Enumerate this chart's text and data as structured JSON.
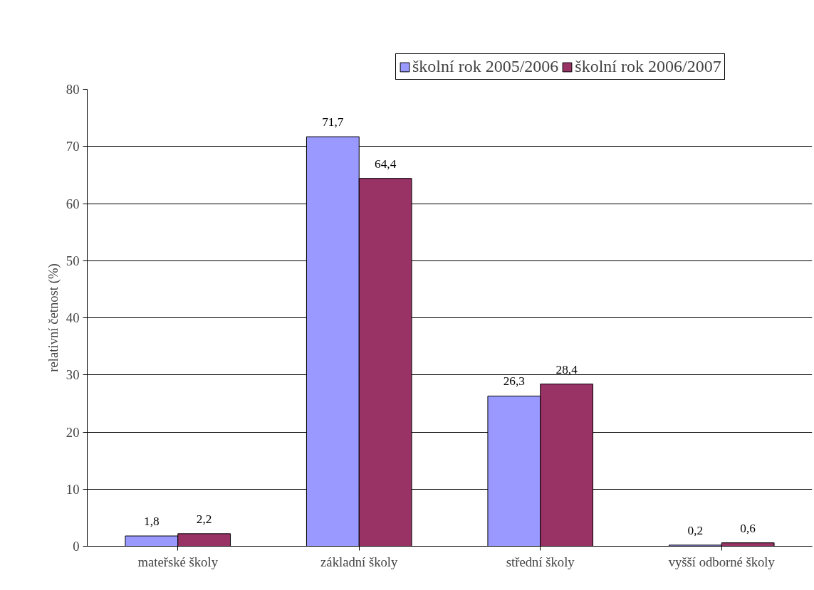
{
  "chart_data": {
    "type": "bar",
    "ylabel": "relativní četnost (%)",
    "categories": [
      "mateřské školy",
      "základní školy",
      "střední školy",
      "vyšší odborné školy"
    ],
    "series": [
      {
        "name": "školní rok 2005/2006",
        "color": "#9999ff",
        "values": [
          1.8,
          71.7,
          26.3,
          0.2
        ],
        "value_labels": [
          "1,8",
          "71,7",
          "26,3",
          "0,2"
        ]
      },
      {
        "name": "školní rok 2006/2007",
        "color": "#993366",
        "values": [
          2.2,
          64.4,
          28.4,
          0.6
        ],
        "value_labels": [
          "2,2",
          "64,4",
          "28,4",
          "0,6"
        ]
      }
    ],
    "ylim": [
      0,
      80
    ],
    "yticks": [
      0,
      10,
      20,
      30,
      40,
      50,
      60,
      70,
      80
    ],
    "grid": "y",
    "legend": "top right"
  }
}
